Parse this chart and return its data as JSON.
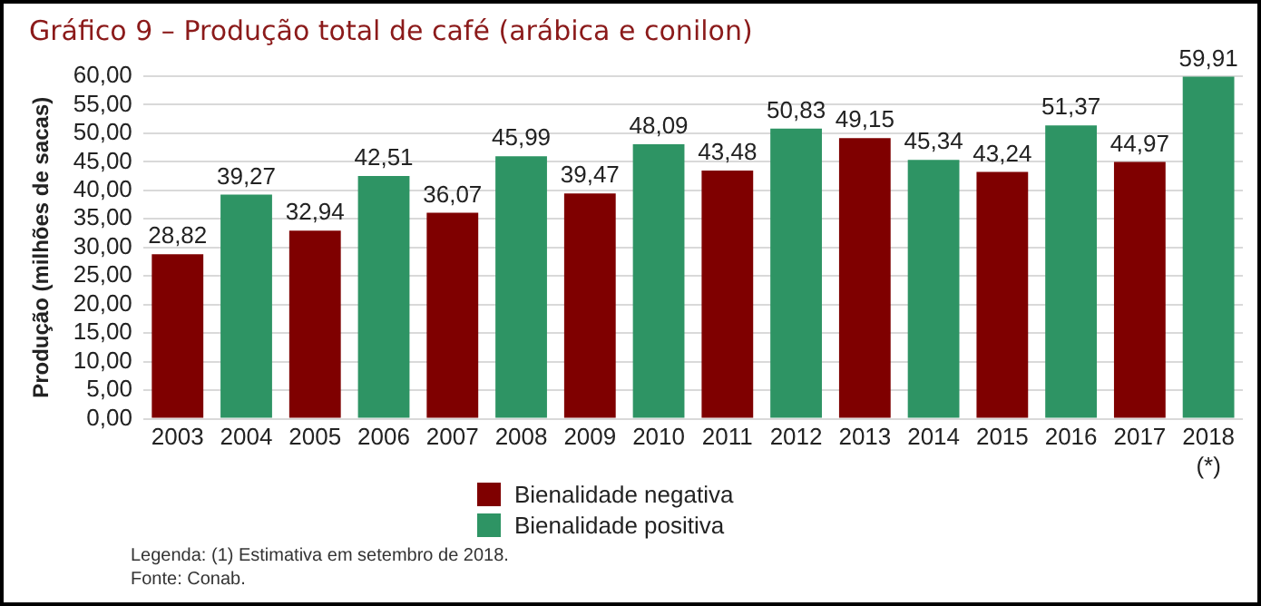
{
  "chart_data": {
    "type": "bar",
    "title": "Gráfico 9 – Produção total de café (arábica e conilon)",
    "ylabel": "Produção (milhões de sacas)",
    "categories": [
      "2003",
      "2004",
      "2005",
      "2006",
      "2007",
      "2008",
      "2009",
      "2010",
      "2011",
      "2012",
      "2013",
      "2014",
      "2015",
      "2016",
      "2017",
      "2018\n(*)"
    ],
    "series": [
      {
        "name": "Bienalidade negativa",
        "color": "#7f0000",
        "values": [
          28.82,
          null,
          32.94,
          null,
          36.07,
          null,
          39.47,
          null,
          43.48,
          null,
          49.15,
          null,
          43.24,
          null,
          44.97,
          null
        ],
        "value_labels": [
          "28,82",
          null,
          "32,94",
          null,
          "36,07",
          null,
          "39,47",
          null,
          "43,48",
          null,
          "49,15",
          null,
          "43,24",
          null,
          "44,97",
          null
        ]
      },
      {
        "name": "Bienalidade positiva",
        "color": "#2e9464",
        "values": [
          null,
          39.27,
          null,
          42.51,
          null,
          45.99,
          null,
          48.09,
          null,
          50.83,
          null,
          45.34,
          null,
          51.37,
          null,
          59.91
        ],
        "value_labels": [
          null,
          "39,27",
          null,
          "42,51",
          null,
          "45,99",
          null,
          "48,09",
          null,
          "50,83",
          null,
          "45,34",
          null,
          "51,37",
          null,
          "59,91"
        ]
      }
    ],
    "ylim": [
      0,
      60
    ],
    "yticks": [
      {
        "value": 0,
        "label": "0,00"
      },
      {
        "value": 5,
        "label": "5,00"
      },
      {
        "value": 10,
        "label": "10,00"
      },
      {
        "value": 15,
        "label": "15,00"
      },
      {
        "value": 20,
        "label": "20,00"
      },
      {
        "value": 25,
        "label": "25,00"
      },
      {
        "value": 30,
        "label": "30,00"
      },
      {
        "value": 35,
        "label": "35,00"
      },
      {
        "value": 40,
        "label": "40,00"
      },
      {
        "value": 45,
        "label": "45,00"
      },
      {
        "value": 50,
        "label": "50,00"
      },
      {
        "value": 55,
        "label": "55,00"
      },
      {
        "value": 60,
        "label": "60,00"
      }
    ],
    "grid": "y",
    "legend": "bottom",
    "annotations": [
      "Legenda: (1) Estimativa em setembro de 2018.",
      "Fonte: Conab."
    ]
  }
}
